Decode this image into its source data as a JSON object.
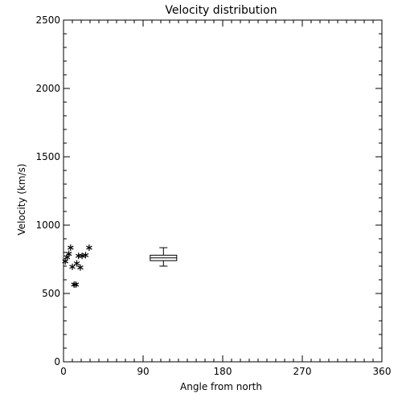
{
  "chart_data": {
    "type": "scatter",
    "title": "Velocity distribution",
    "xlabel": "Angle from north",
    "ylabel": "Velocity (km/s)",
    "xlim": [
      0,
      360
    ],
    "ylim": [
      0,
      2500
    ],
    "x_ticks": [
      0,
      90,
      180,
      270,
      360
    ],
    "y_ticks": [
      0,
      500,
      1000,
      1500,
      2000,
      2500
    ],
    "x_minor_step": 10,
    "y_minor_step": 100,
    "grid": false,
    "marker": "asterisk",
    "points": [
      {
        "x": 2,
        "y": 735
      },
      {
        "x": 4,
        "y": 765
      },
      {
        "x": 6,
        "y": 790
      },
      {
        "x": 8,
        "y": 835
      },
      {
        "x": 10,
        "y": 695
      },
      {
        "x": 12,
        "y": 565
      },
      {
        "x": 14,
        "y": 565
      },
      {
        "x": 15,
        "y": 720
      },
      {
        "x": 17,
        "y": 775
      },
      {
        "x": 19,
        "y": 690
      },
      {
        "x": 21,
        "y": 775
      },
      {
        "x": 25,
        "y": 780
      },
      {
        "x": 29,
        "y": 835
      }
    ],
    "box": {
      "x_center": 113,
      "x_halfwidth": 15,
      "whisker_low": 700,
      "q1": 740,
      "median": 760,
      "q3": 780,
      "whisker_high": 835
    }
  }
}
